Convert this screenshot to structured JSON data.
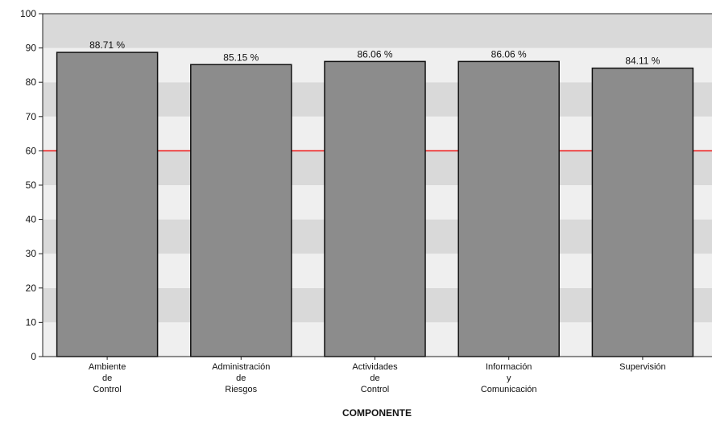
{
  "chart_data": {
    "type": "bar",
    "categories": [
      [
        "Ambiente",
        "de",
        "Control"
      ],
      [
        "Administración",
        "de",
        "Riesgos"
      ],
      [
        "Actividades",
        "de",
        "Control"
      ],
      [
        "Información",
        "y",
        "Comunicación"
      ],
      [
        "Supervisión"
      ]
    ],
    "values": [
      88.71,
      85.15,
      86.06,
      86.06,
      84.11
    ],
    "data_labels": [
      "88.71 %",
      "85.15 %",
      "86.06 %",
      "86.06 %",
      "84.11 %"
    ],
    "xlabel": "COMPONENTE",
    "ylabel": "",
    "title": "",
    "ylim": [
      0,
      100
    ],
    "y_ticks": [
      "0",
      "10",
      "20",
      "30",
      "40",
      "50",
      "60",
      "70",
      "80",
      "90",
      "100"
    ],
    "reference_line": 60,
    "grid": "alternating horizontal bands",
    "colors": {
      "bar_fill": "#8c8c8c",
      "bar_stroke": "#111111",
      "band_light": "#efefef",
      "band_dark": "#d9d9d9",
      "reference_line": "#ee1111",
      "axis": "#222222"
    }
  }
}
